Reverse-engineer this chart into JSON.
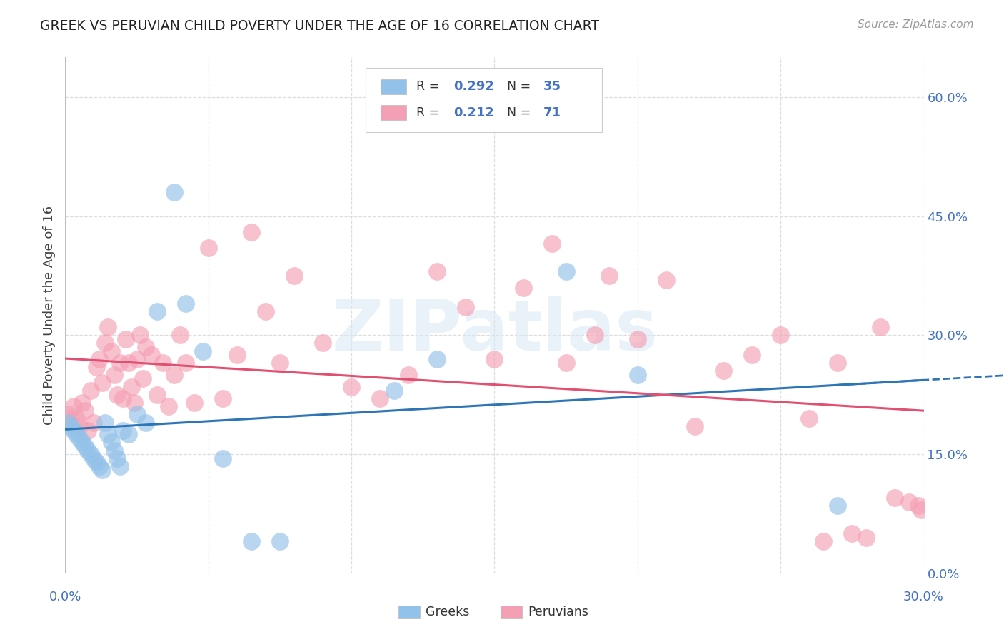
{
  "title": "GREEK VS PERUVIAN CHILD POVERTY UNDER THE AGE OF 16 CORRELATION CHART",
  "source": "Source: ZipAtlas.com",
  "ylabel": "Child Poverty Under the Age of 16",
  "xmin": 0.0,
  "xmax": 0.3,
  "ymin": 0.0,
  "ymax": 0.65,
  "xticks": [
    0.0,
    0.05,
    0.1,
    0.15,
    0.2,
    0.25,
    0.3
  ],
  "ytick_positions_right": [
    0.0,
    0.15,
    0.3,
    0.45,
    0.6
  ],
  "greek_color": "#92C1E9",
  "peruvian_color": "#F4A0B4",
  "greek_trend_color": "#2E75B6",
  "peruvian_trend_color": "#E05070",
  "right_axis_color": "#4472C4",
  "grid_color": "#DDDDDD",
  "background_color": "#FFFFFF",
  "title_color": "#222222",
  "axis_label_color": "#444444",
  "watermark": "ZIPatlas",
  "legend_label_greek": "Greeks",
  "legend_label_peruvian": "Peruvians",
  "greek_R": "0.292",
  "greek_N": "35",
  "peruvian_R": "0.212",
  "peruvian_N": "71",
  "greek_points_x": [
    0.001,
    0.002,
    0.003,
    0.004,
    0.005,
    0.006,
    0.007,
    0.008,
    0.009,
    0.01,
    0.011,
    0.012,
    0.013,
    0.014,
    0.015,
    0.016,
    0.017,
    0.018,
    0.019,
    0.02,
    0.022,
    0.025,
    0.028,
    0.032,
    0.038,
    0.042,
    0.048,
    0.055,
    0.065,
    0.075,
    0.115,
    0.13,
    0.175,
    0.2,
    0.27
  ],
  "greek_points_y": [
    0.19,
    0.185,
    0.18,
    0.175,
    0.17,
    0.165,
    0.16,
    0.155,
    0.15,
    0.145,
    0.14,
    0.135,
    0.13,
    0.19,
    0.175,
    0.165,
    0.155,
    0.145,
    0.135,
    0.18,
    0.175,
    0.2,
    0.19,
    0.33,
    0.48,
    0.34,
    0.28,
    0.145,
    0.04,
    0.04,
    0.23,
    0.27,
    0.38,
    0.25,
    0.085
  ],
  "peruvian_points_x": [
    0.001,
    0.002,
    0.003,
    0.004,
    0.005,
    0.006,
    0.007,
    0.008,
    0.009,
    0.01,
    0.011,
    0.012,
    0.013,
    0.014,
    0.015,
    0.016,
    0.017,
    0.018,
    0.019,
    0.02,
    0.021,
    0.022,
    0.023,
    0.024,
    0.025,
    0.026,
    0.027,
    0.028,
    0.03,
    0.032,
    0.034,
    0.036,
    0.038,
    0.04,
    0.042,
    0.045,
    0.05,
    0.055,
    0.06,
    0.065,
    0.07,
    0.075,
    0.08,
    0.09,
    0.1,
    0.11,
    0.12,
    0.13,
    0.14,
    0.15,
    0.16,
    0.17,
    0.175,
    0.185,
    0.19,
    0.2,
    0.21,
    0.22,
    0.23,
    0.24,
    0.25,
    0.26,
    0.265,
    0.27,
    0.275,
    0.28,
    0.285,
    0.29,
    0.295,
    0.298,
    0.299
  ],
  "peruvian_points_y": [
    0.2,
    0.195,
    0.21,
    0.195,
    0.185,
    0.215,
    0.205,
    0.18,
    0.23,
    0.19,
    0.26,
    0.27,
    0.24,
    0.29,
    0.31,
    0.28,
    0.25,
    0.225,
    0.265,
    0.22,
    0.295,
    0.265,
    0.235,
    0.215,
    0.27,
    0.3,
    0.245,
    0.285,
    0.275,
    0.225,
    0.265,
    0.21,
    0.25,
    0.3,
    0.265,
    0.215,
    0.41,
    0.22,
    0.275,
    0.43,
    0.33,
    0.265,
    0.375,
    0.29,
    0.235,
    0.22,
    0.25,
    0.38,
    0.335,
    0.27,
    0.36,
    0.415,
    0.265,
    0.3,
    0.375,
    0.295,
    0.37,
    0.185,
    0.255,
    0.275,
    0.3,
    0.195,
    0.04,
    0.265,
    0.05,
    0.045,
    0.31,
    0.095,
    0.09,
    0.085,
    0.08
  ]
}
